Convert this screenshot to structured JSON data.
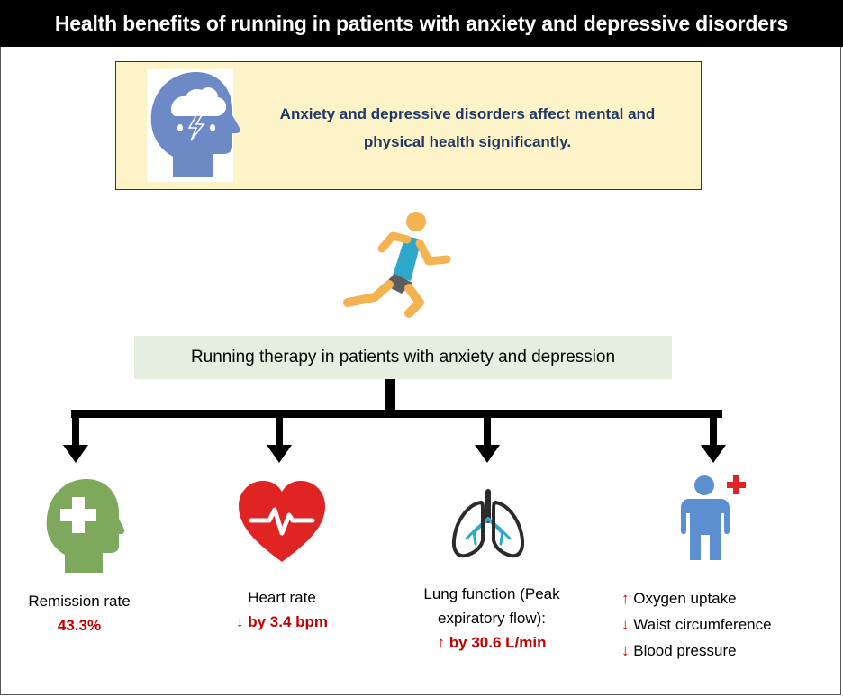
{
  "title": "Health benefits of running in patients with anxiety and depressive disorders",
  "intro": {
    "text": "Anxiety and depressive disorders affect mental and physical health significantly.",
    "icon": "head-storm-icon"
  },
  "therapy": {
    "label": "Running therapy in patients with anxiety and depression",
    "icon": "runner-icon"
  },
  "outcomes": [
    {
      "icon": "head-medical-cross-icon",
      "label": "Remission rate",
      "value": "43.3%"
    },
    {
      "icon": "heart-pulse-icon",
      "label": "Heart rate",
      "arrow": "↓",
      "value": "by 3.4 bpm"
    },
    {
      "icon": "lungs-icon",
      "label_line1": "Lung function (Peak",
      "label_line2": "expiratory flow):",
      "arrow": "↑",
      "value": "by 30.6 L/min"
    },
    {
      "icon": "person-health-icon",
      "items": [
        {
          "arrow": "↑",
          "text": "Oxygen uptake"
        },
        {
          "arrow": "↓",
          "text": "Waist circumference"
        },
        {
          "arrow": "↓",
          "text": "Blood pressure"
        }
      ]
    }
  ],
  "colors": {
    "title_bg": "#000000",
    "intro_bg": "#fdf3c9",
    "intro_text": "#1f3864",
    "therapy_bg": "#e4efdf",
    "highlight": "#c00000",
    "head_blue": "#6d8ac7",
    "head_green": "#7ea95c",
    "heart_red": "#e02424",
    "person_blue": "#5b8fd0"
  }
}
